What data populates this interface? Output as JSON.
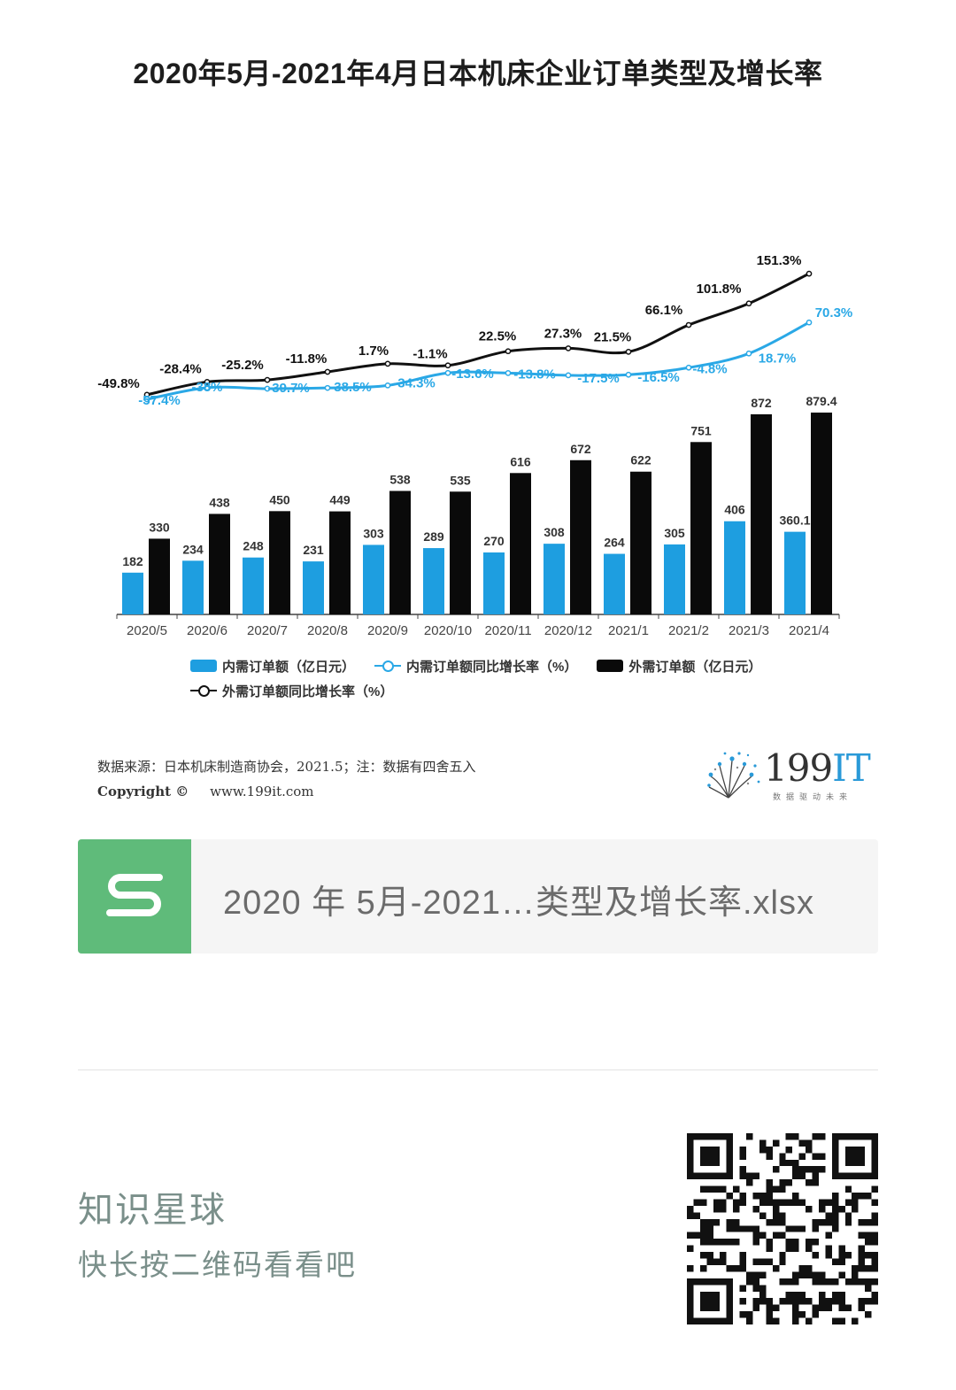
{
  "title": "2020年5月-2021年4月日本机床企业订单类型及增长率",
  "chart_data": {
    "type": "bar",
    "categories": [
      "2020/5",
      "2020/6",
      "2020/7",
      "2020/8",
      "2020/9",
      "2020/10",
      "2020/11",
      "2020/12",
      "2021/1",
      "2021/2",
      "2021/3",
      "2021/4"
    ],
    "series": [
      {
        "name": "内需订单额（亿日元）",
        "kind": "bar",
        "color": "#1e9ee0",
        "values": [
          182,
          234,
          248,
          231,
          303,
          289,
          270,
          308,
          264,
          305,
          406,
          360.1
        ],
        "labels": [
          "182",
          "234",
          "248",
          "231",
          "303",
          "289",
          "270",
          "308",
          "264",
          "305",
          "406",
          "360.1"
        ]
      },
      {
        "name": "外需订单额（亿日元）",
        "kind": "bar",
        "color": "#0a0a0a",
        "values": [
          330,
          438,
          450,
          449,
          538,
          535,
          616,
          672,
          622,
          751,
          872,
          879.4
        ],
        "labels": [
          "330",
          "438",
          "450",
          "449",
          "538",
          "535",
          "616",
          "672",
          "622",
          "751",
          "872",
          "879.4"
        ]
      },
      {
        "name": "内需订单额同比增长率（%）",
        "kind": "line",
        "color": "#2aa8e6",
        "values": [
          -57.4,
          -38,
          -39.7,
          -38.5,
          -34.3,
          -13.6,
          -13.8,
          -17.5,
          -16.5,
          -4.8,
          18.7,
          70.3
        ],
        "labels": [
          "-57.4%",
          "-38%",
          "-39.7%",
          "-38.5%",
          "-34.3%",
          "-13.6%",
          "-13.8%",
          "-17.5%",
          "-16.5%",
          "-4.8%",
          "18.7%",
          "70.3%"
        ]
      },
      {
        "name": "外需订单额同比增长率（%）",
        "kind": "line",
        "color": "#111111",
        "values": [
          -49.8,
          -28.4,
          -25.2,
          -11.8,
          1.7,
          -1.1,
          22.5,
          27.3,
          21.5,
          66.1,
          101.8,
          151.3
        ],
        "labels": [
          "-49.8%",
          "-28.4%",
          "-25.2%",
          "-11.8%",
          "1.7%",
          "-1.1%",
          "22.5%",
          "27.3%",
          "21.5%",
          "66.1%",
          "101.8%",
          "151.3%"
        ]
      }
    ],
    "legend_position": "bottom",
    "grid": false
  },
  "legend": {
    "bar_domestic": "内需订单额（亿日元）",
    "line_domestic": "内需订单额同比增长率（%）",
    "bar_foreign": "外需订单额（亿日元）",
    "line_foreign": "外需订单额同比增长率（%）"
  },
  "source": {
    "line1": "数据来源：日本机床制造商协会，2021.5；注：数据有四舍五入",
    "copyright": "Copyright ©",
    "website": "www.199it.com"
  },
  "logo": {
    "number": "199",
    "suffix": "IT",
    "tagline": "数据驱动未来"
  },
  "file": {
    "name": "2020 年 5月-2021…类型及增长率.xlsx",
    "icon": "spreadsheet-s-icon"
  },
  "footer": {
    "title": "知识星球",
    "hint": "快长按二维码看看吧"
  },
  "colors": {
    "domestic": "#1e9ee0",
    "foreign": "#0a0a0a",
    "file_icon": "#5fbb7a"
  }
}
